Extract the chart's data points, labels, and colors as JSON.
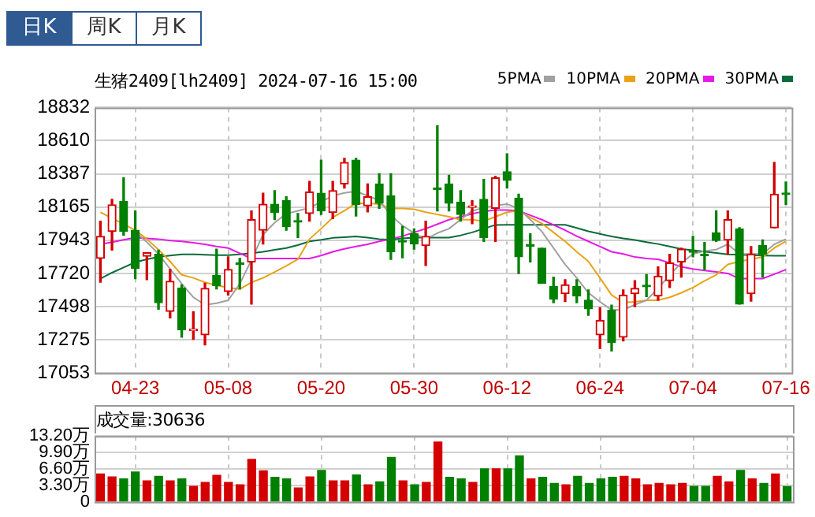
{
  "chart_data": [
    {
      "type": "candlestick",
      "title": "生猪2409[lh2409] 2024-07-16 15:00",
      "annotations": [
        "日K",
        "周K",
        "月K"
      ],
      "categories": [
        null,
        null,
        null,
        "04-23",
        null,
        null,
        null,
        null,
        null,
        null,
        null,
        "05-08",
        null,
        null,
        null,
        null,
        null,
        null,
        null,
        "05-20",
        null,
        null,
        null,
        null,
        null,
        null,
        null,
        "05-30",
        null,
        null,
        null,
        null,
        null,
        null,
        null,
        "06-12",
        null,
        null,
        null,
        null,
        null,
        null,
        null,
        "06-24",
        null,
        null,
        null,
        null,
        null,
        null,
        null,
        "07-04",
        null,
        null,
        null,
        null,
        null,
        null,
        null,
        "07-16"
      ],
      "ohlc": [
        [
          17821,
          18070,
          17661,
          17968
        ],
        [
          18002,
          18217,
          17876,
          18180
        ],
        [
          18204,
          18361,
          17975,
          18002
        ],
        [
          18009,
          18139,
          17685,
          17753
        ],
        [
          17835,
          17859,
          17678,
          17859
        ],
        [
          17848,
          17876,
          17480,
          17524
        ],
        [
          17466,
          17746,
          17422,
          17667
        ],
        [
          17623,
          17644,
          17292,
          17343
        ],
        [
          17336,
          17463,
          17278,
          17343
        ],
        [
          17309,
          17654,
          17241,
          17620
        ],
        [
          17705,
          17883,
          17616,
          17637
        ],
        [
          17599,
          17831,
          17575,
          17746
        ],
        [
          17787,
          17821,
          17616,
          17780
        ],
        [
          17797,
          18139,
          17514,
          18081
        ],
        [
          18009,
          18258,
          17917,
          18183
        ],
        [
          18183,
          18275,
          18081,
          18129
        ],
        [
          18207,
          18234,
          18009,
          18033
        ],
        [
          18070,
          18122,
          17961,
          18064
        ],
        [
          18122,
          18337,
          18070,
          18265
        ],
        [
          18258,
          18480,
          18115,
          18139
        ],
        [
          18129,
          18337,
          18088,
          18275
        ],
        [
          18320,
          18491,
          18292,
          18463
        ],
        [
          18480,
          18491,
          18105,
          18183
        ],
        [
          18173,
          18320,
          18132,
          18234
        ],
        [
          18320,
          18388,
          18156,
          18190
        ],
        [
          18241,
          18388,
          17814,
          17866
        ],
        [
          17941,
          18036,
          17825,
          17930
        ],
        [
          17985,
          18019,
          17883,
          17917
        ],
        [
          17907,
          18070,
          17773,
          17968
        ],
        [
          18289,
          18709,
          18139,
          18282
        ],
        [
          18320,
          18378,
          18139,
          18190
        ],
        [
          18197,
          18275,
          18070,
          18115
        ],
        [
          18163,
          18207,
          18053,
          18169
        ],
        [
          18217,
          18350,
          17934,
          17961
        ],
        [
          18156,
          18371,
          17934,
          18361
        ],
        [
          18402,
          18521,
          18292,
          18344
        ],
        [
          18224,
          18251,
          17719,
          17831
        ],
        [
          17910,
          17985,
          17797,
          17903
        ],
        [
          17889,
          17889,
          17654,
          17654
        ],
        [
          17633,
          17695,
          17524,
          17548
        ],
        [
          17585,
          17678,
          17531,
          17644
        ],
        [
          17633,
          17678,
          17524,
          17568
        ],
        [
          17541,
          17609,
          17439,
          17483
        ],
        [
          17309,
          17490,
          17217,
          17405
        ],
        [
          17473,
          17507,
          17200,
          17258
        ],
        [
          17292,
          17609,
          17268,
          17575
        ],
        [
          17585,
          17671,
          17497,
          17620
        ],
        [
          17637,
          17712,
          17565,
          17630
        ],
        [
          17568,
          17763,
          17541,
          17702
        ],
        [
          17671,
          17848,
          17626,
          17790
        ],
        [
          17797,
          17889,
          17695,
          17883
        ],
        [
          17869,
          17968,
          17831,
          17862
        ],
        [
          17845,
          17927,
          17746,
          17838
        ],
        [
          17992,
          18139,
          17934,
          17941
        ],
        [
          17944,
          18139,
          17848,
          18081
        ],
        [
          18019,
          18026,
          17514,
          17514
        ],
        [
          17585,
          17900,
          17534,
          17848
        ],
        [
          17907,
          17944,
          17695,
          17848
        ],
        [
          18026,
          18463,
          18026,
          18251
        ],
        [
          18255,
          18333,
          18183,
          18248
        ]
      ],
      "colors": [
        "#d40000",
        "#d40000",
        "#008000",
        "#008000",
        "#d40000",
        "#008000",
        "#d40000",
        "#008000",
        "#d40000",
        "#d40000",
        "#008000",
        "#d40000",
        "#008000",
        "#d40000",
        "#d40000",
        "#008000",
        "#008000",
        "#008000",
        "#d40000",
        "#008000",
        "#d40000",
        "#d40000",
        "#008000",
        "#d40000",
        "#008000",
        "#008000",
        "#008000",
        "#008000",
        "#d40000",
        "#008000",
        "#008000",
        "#008000",
        "#d40000",
        "#008000",
        "#d40000",
        "#008000",
        "#008000",
        "#008000",
        "#008000",
        "#008000",
        "#d40000",
        "#008000",
        "#008000",
        "#d40000",
        "#008000",
        "#d40000",
        "#d40000",
        "#008000",
        "#d40000",
        "#d40000",
        "#d40000",
        "#008000",
        "#008000",
        "#008000",
        "#d40000",
        "#008000",
        "#d40000",
        "#008000",
        "#d40000",
        "#008000"
      ],
      "series": [
        {
          "type": "line",
          "name": "5PMA",
          "color": "#a0a0a0",
          "values": [
            null,
            null,
            null,
            18000,
            17930,
            17850,
            17750,
            17650,
            17560,
            17510,
            17520,
            17540,
            17650,
            17810,
            17980,
            18060,
            18120,
            18140,
            18160,
            18200,
            18240,
            18260,
            18270,
            18240,
            18210,
            18110,
            18040,
            17990,
            17950,
            17990,
            18020,
            18080,
            18140,
            18160,
            18175,
            18185,
            18155,
            18080,
            18000,
            17890,
            17780,
            17690,
            17590,
            17530,
            17475,
            17475,
            17510,
            17540,
            17620,
            17710,
            17790,
            17850,
            17870,
            17880,
            17915,
            17850,
            17850,
            17850,
            17915,
            17950
          ]
        },
        {
          "type": "line",
          "name": "10PMA",
          "color": "#e8a317",
          "values": [
            18130,
            18090,
            18050,
            18010,
            17950,
            17880,
            17800,
            17710,
            17690,
            17660,
            17640,
            17625,
            17615,
            17660,
            17690,
            17730,
            17770,
            17815,
            17950,
            18020,
            18095,
            18140,
            18190,
            18190,
            18185,
            18155,
            18155,
            18150,
            18130,
            18115,
            18100,
            18080,
            18080,
            18070,
            18100,
            18130,
            18140,
            18095,
            18055,
            17995,
            17935,
            17865,
            17800,
            17690,
            17575,
            17525,
            17530,
            17540,
            17540,
            17560,
            17590,
            17625,
            17670,
            17710,
            17780,
            17800,
            17815,
            17830,
            17890,
            17935
          ]
        },
        {
          "type": "line",
          "name": "20PMA",
          "color": "#e619e6",
          "values": [
            17915,
            17930,
            17945,
            17960,
            17955,
            17950,
            17940,
            17935,
            17925,
            17915,
            17900,
            17890,
            17855,
            17820,
            17820,
            17820,
            17820,
            17820,
            17820,
            17840,
            17865,
            17885,
            17900,
            17915,
            17935,
            17950,
            17970,
            17995,
            18020,
            18050,
            18080,
            18100,
            18120,
            18135,
            18145,
            18145,
            18140,
            18110,
            18080,
            18045,
            18010,
            17970,
            17935,
            17900,
            17865,
            17850,
            17830,
            17820,
            17815,
            17790,
            17765,
            17750,
            17740,
            17730,
            17720,
            17685,
            17685,
            17685,
            17715,
            17745
          ]
        },
        {
          "type": "line",
          "name": "30PMA",
          "color": "#0a6b3a",
          "values": [
            17685,
            17725,
            17760,
            17795,
            17815,
            17830,
            17840,
            17848,
            17848,
            17845,
            17843,
            17842,
            17848,
            17855,
            17865,
            17878,
            17890,
            17910,
            17935,
            17945,
            17958,
            17963,
            17968,
            17960,
            17950,
            17945,
            17955,
            17960,
            17960,
            17960,
            17960,
            17975,
            17995,
            18020,
            18045,
            18046,
            18046,
            18046,
            18046,
            18046,
            18046,
            18025,
            18002,
            17985,
            17968,
            17955,
            17944,
            17930,
            17917,
            17900,
            17883,
            17875,
            17866,
            17857,
            17848,
            17845,
            17842,
            17840,
            17839,
            17838
          ]
        }
      ],
      "ylim": [
        17053,
        18832
      ],
      "yticks": [
        17053,
        17275,
        17498,
        17720,
        17943,
        18165,
        18387,
        18610,
        18832
      ],
      "grid": true,
      "legend": "top right",
      "marker": "none"
    },
    {
      "type": "bar",
      "title": "成交量:30636",
      "categories": [
        null,
        null,
        null,
        null,
        null,
        null,
        null,
        null,
        null,
        null,
        null,
        null,
        null,
        null,
        null,
        null,
        null,
        null,
        null,
        null,
        null,
        null,
        null,
        null,
        null,
        null,
        null,
        null,
        null,
        null,
        null,
        null,
        null,
        null,
        null,
        null,
        null,
        null,
        null,
        null,
        null,
        null,
        null,
        null,
        null,
        null,
        null,
        null,
        null,
        null,
        null,
        null,
        null,
        null,
        null,
        null,
        null,
        null,
        null,
        null
      ],
      "values": [
        5.6,
        5.0,
        4.6,
        6.0,
        4.2,
        5.1,
        4.2,
        4.6,
        3.1,
        3.9,
        5.3,
        3.9,
        3.4,
        8.5,
        6.2,
        4.9,
        4.6,
        2.8,
        5.0,
        6.3,
        4.2,
        4.2,
        5.4,
        3.4,
        4.0,
        8.9,
        4.2,
        3.4,
        3.9,
        12.0,
        4.9,
        4.6,
        3.9,
        6.6,
        6.6,
        6.6,
        9.2,
        4.6,
        4.9,
        3.7,
        3.4,
        5.1,
        3.7,
        4.6,
        4.9,
        5.1,
        4.6,
        3.4,
        3.7,
        3.4,
        3.7,
        3.1,
        3.1,
        5.1,
        4.0,
        6.3,
        4.6,
        3.7,
        5.6,
        3.06
      ],
      "colors": [
        "#d40000",
        "#d40000",
        "#008000",
        "#008000",
        "#d40000",
        "#008000",
        "#d40000",
        "#008000",
        "#d40000",
        "#d40000",
        "#d40000",
        "#d40000",
        "#d40000",
        "#d40000",
        "#d40000",
        "#008000",
        "#008000",
        "#d40000",
        "#d40000",
        "#008000",
        "#d40000",
        "#d40000",
        "#008000",
        "#d40000",
        "#008000",
        "#008000",
        "#d40000",
        "#008000",
        "#d40000",
        "#d40000",
        "#008000",
        "#008000",
        "#d40000",
        "#008000",
        "#d40000",
        "#008000",
        "#008000",
        "#d40000",
        "#008000",
        "#008000",
        "#d40000",
        "#008000",
        "#008000",
        "#008000",
        "#008000",
        "#d40000",
        "#d40000",
        "#d40000",
        "#d40000",
        "#d40000",
        "#d40000",
        "#008000",
        "#008000",
        "#d40000",
        "#d40000",
        "#008000",
        "#d40000",
        "#008000",
        "#d40000",
        "#008000"
      ],
      "ylim": [
        0,
        13.2
      ],
      "yticks": [
        0,
        {
          "value": 3.3,
          "label": "3.30万"
        },
        {
          "value": 6.6,
          "label": "6.60万"
        },
        {
          "value": 9.9,
          "label": "9.90万"
        },
        {
          "value": 13.2,
          "label": "13.20万"
        }
      ],
      "grid": true,
      "tick_labels": "y"
    }
  ]
}
